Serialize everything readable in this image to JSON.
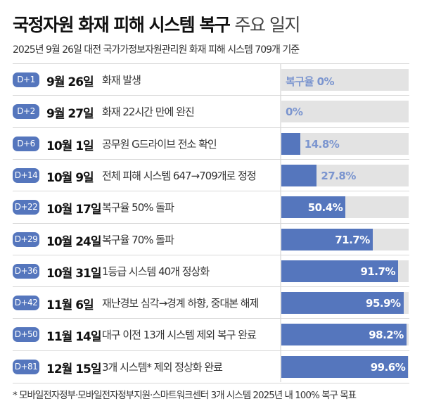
{
  "title_bold": "국정자원 화재 피해 시스템 복구",
  "title_light": "주요 일지",
  "subtitle": "2025년 9월 26일 대전 국가가정보자원관리원 화재 피해 시스템 709개 기준",
  "colors": {
    "bar": "#5576bd",
    "track": "#e3e3e3",
    "label_outside": "#7b95cf"
  },
  "chart_data": {
    "type": "bar",
    "orientation": "horizontal",
    "xlim": [
      0,
      100
    ],
    "value_prefix_first": "복구율 ",
    "rows": [
      {
        "badge": "D+1",
        "date": "9월 26일",
        "event": "화재 발생",
        "value": 0,
        "label": "복구율 0%"
      },
      {
        "badge": "D+2",
        "date": "9월 27일",
        "event": "화재 22시간 만에 완진",
        "value": 0,
        "label": "0%"
      },
      {
        "badge": "D+6",
        "date": "10월 1일",
        "event": "공무원 G드라이브 전소 확인",
        "value": 14.8,
        "label": "14.8%"
      },
      {
        "badge": "D+14",
        "date": "10월 9일",
        "event": "전체 피해 시스템 647→709개로 정정",
        "value": 27.8,
        "label": "27.8%"
      },
      {
        "badge": "D+22",
        "date": "10월 17일",
        "event": "복구율 50% 돌파",
        "value": 50.4,
        "label": "50.4%"
      },
      {
        "badge": "D+29",
        "date": "10월 24일",
        "event": "복구율 70% 돌파",
        "value": 71.7,
        "label": "71.7%"
      },
      {
        "badge": "D+36",
        "date": "10월 31일",
        "event": "1등급 시스템 40개 정상화",
        "value": 91.7,
        "label": "91.7%"
      },
      {
        "badge": "D+42",
        "date": "11월 6일",
        "event": "재난경보 심각→경계 하향, 중대본 해제",
        "value": 95.9,
        "label": "95.9%"
      },
      {
        "badge": "D+50",
        "date": "11월 14일",
        "event": "대구 이전 13개 시스템 제외 복구 완료",
        "value": 98.2,
        "label": "98.2%"
      },
      {
        "badge": "D+81",
        "date": "12월 15일",
        "event": "3개 시스템* 제외 정상화 완료",
        "value": 99.6,
        "label": "99.6%"
      }
    ]
  },
  "footnote": "* 모바일전자정부·모바일전자정부지원·스마트워크센터 3개 시스템 2025년 내 100% 복구 목표"
}
